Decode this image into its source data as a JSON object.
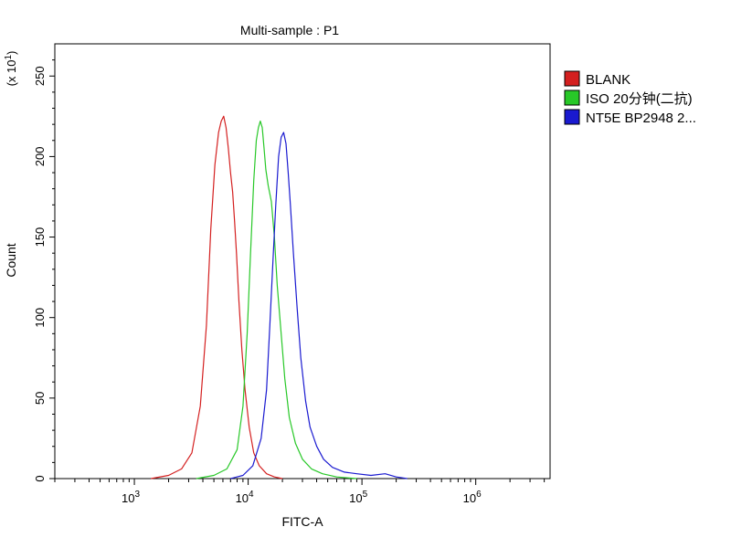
{
  "chart_data": {
    "type": "line",
    "title": "Multi-sample : P1",
    "xlabel": "FITC-A",
    "ylabel": "Count",
    "y_scale_note": "(x 10",
    "y_scale_exp": "1",
    "y_scale_close": ")",
    "x_scale": "log",
    "xlim": [
      200,
      4500000
    ],
    "ylim": [
      0,
      270
    ],
    "y_ticks": [
      0,
      50,
      100,
      150,
      200,
      250
    ],
    "y_tick_labels": [
      "0",
      "50",
      "100",
      "150",
      "200",
      "250"
    ],
    "x_ticks": [
      {
        "value": 1000,
        "base": "10",
        "exp": "3"
      },
      {
        "value": 10000,
        "base": "10",
        "exp": "4"
      },
      {
        "value": 100000,
        "base": "10",
        "exp": "5"
      },
      {
        "value": 1000000,
        "base": "10",
        "exp": "6"
      }
    ],
    "legend_position": "right",
    "series": [
      {
        "name": "BLANK",
        "color": "#d42020",
        "x": [
          1400,
          2000,
          2600,
          3200,
          3800,
          4300,
          4700,
          5100,
          5500,
          5800,
          6100,
          6400,
          6700,
          7000,
          7300,
          7600,
          7900,
          8300,
          8800,
          9400,
          10200,
          11200,
          12500,
          14500,
          17000,
          20000
        ],
        "y": [
          0,
          2,
          6,
          16,
          45,
          95,
          155,
          195,
          215,
          222,
          225,
          218,
          205,
          190,
          178,
          160,
          140,
          110,
          80,
          55,
          32,
          16,
          8,
          3,
          1,
          0
        ]
      },
      {
        "name": "ISO 20分钟(二抗)",
        "color": "#28c828",
        "x": [
          3500,
          5000,
          6500,
          8000,
          9000,
          9800,
          10500,
          11200,
          11800,
          12300,
          12800,
          13300,
          13800,
          14300,
          15000,
          16000,
          17000,
          18000,
          19500,
          21000,
          23000,
          26000,
          30000,
          36000,
          45000,
          60000,
          90000
        ],
        "y": [
          0,
          2,
          6,
          18,
          45,
          90,
          140,
          185,
          210,
          218,
          222,
          218,
          205,
          192,
          182,
          172,
          150,
          120,
          90,
          62,
          38,
          22,
          12,
          6,
          3,
          1,
          0
        ]
      },
      {
        "name": "NT5E BP2948 2...",
        "color": "#1a1ad0",
        "x": [
          7000,
          9000,
          11000,
          13000,
          14500,
          15500,
          16500,
          17500,
          18500,
          19500,
          20500,
          21500,
          22500,
          23500,
          25000,
          27000,
          29000,
          32000,
          35000,
          40000,
          46000,
          55000,
          70000,
          90000,
          120000,
          160000,
          200000,
          250000
        ],
        "y": [
          0,
          2,
          8,
          25,
          55,
          95,
          135,
          170,
          200,
          212,
          215,
          208,
          190,
          170,
          140,
          105,
          75,
          48,
          32,
          20,
          12,
          7,
          4,
          3,
          2,
          3,
          1,
          0
        ]
      }
    ]
  }
}
